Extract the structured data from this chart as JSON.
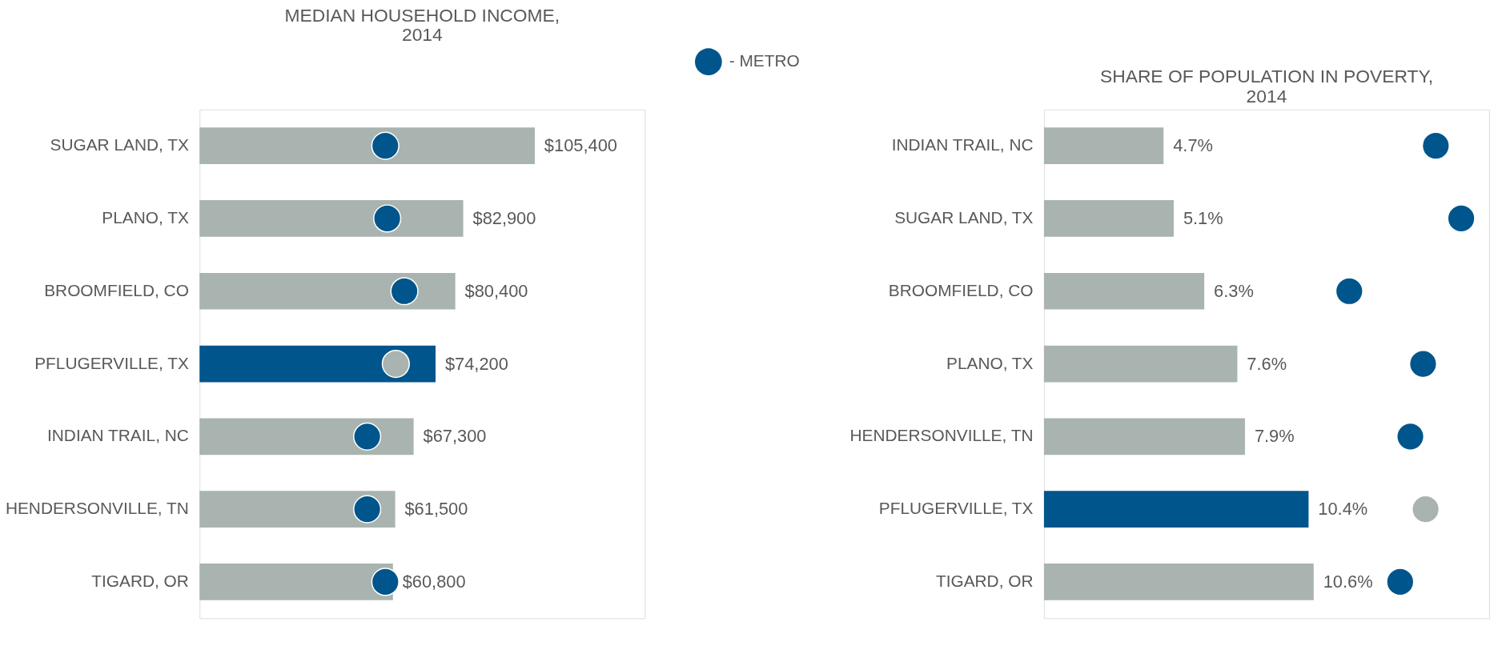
{
  "chart_data": [
    {
      "type": "bar",
      "orientation": "horizontal",
      "title": "MEDIAN HOUSEHOLD INCOME,\n2014",
      "categories": [
        "SUGAR LAND, TX",
        "PLANO, TX",
        "BROOMFIELD, CO",
        "PFLUGERVILLE, TX",
        "INDIAN TRAIL, NC",
        "HENDERSONVILLE, TN",
        "TIGARD, OR"
      ],
      "xlim": [
        0,
        140000
      ],
      "grid": false,
      "legend": "top right",
      "marker": "circle",
      "series": [
        {
          "colors": [
            "#a9b3b0",
            "#a9b3b0",
            "#a9b3b0",
            "#00558c",
            "#a9b3b0",
            "#a9b3b0",
            "#a9b3b0"
          ],
          "values": [
            105400,
            82900,
            80400,
            74200,
            67300,
            61500,
            60800
          ],
          "value_labels": [
            "$105,400",
            "$82,900",
            "$80,400",
            "$74,200",
            "$67,300",
            "$61,500",
            "$60,800"
          ]
        },
        {
          "type": "scatter",
          "name": "- METRO",
          "color": "#00558c",
          "colors": [
            "#00558c",
            "#00558c",
            "#00558c",
            "#a9b3b0",
            "#00558c",
            "#00558c",
            "#00558c"
          ],
          "x": [
            "SUGAR LAND, TX",
            "PLANO, TX",
            "BROOMFIELD, CO",
            "PFLUGERVILLE, TX",
            "INDIAN TRAIL, NC",
            "HENDERSONVILLE, TN",
            "TIGARD, OR"
          ],
          "values": [
            58400,
            59000,
            64400,
            61700,
            52700,
            52700,
            58400
          ]
        }
      ]
    },
    {
      "type": "bar",
      "orientation": "horizontal",
      "title": "SHARE OF POPULATION IN POVERTY,\n2014",
      "categories": [
        "INDIAN TRAIL, NC",
        "SUGAR LAND, TX",
        "BROOMFIELD, CO",
        "PLANO, TX",
        "HENDERSONVILLE, TN",
        "PFLUGERVILLE, TX",
        "TIGARD, OR"
      ],
      "xlim": [
        0,
        17.5
      ],
      "grid": false,
      "marker": "circle",
      "series": [
        {
          "colors": [
            "#a9b3b0",
            "#a9b3b0",
            "#a9b3b0",
            "#a9b3b0",
            "#a9b3b0",
            "#00558c",
            "#a9b3b0"
          ],
          "values": [
            4.7,
            5.1,
            6.3,
            7.6,
            7.9,
            10.4,
            10.6
          ],
          "value_labels": [
            "4.7%",
            "5.1%",
            "6.3%",
            "7.6%",
            "7.9%",
            "10.4%",
            "10.6%"
          ]
        },
        {
          "type": "scatter",
          "color": "#00558c",
          "colors": [
            "#00558c",
            "#00558c",
            "#00558c",
            "#00558c",
            "#00558c",
            "#a9b3b0",
            "#00558c"
          ],
          "x": [
            "INDIAN TRAIL, NC",
            "SUGAR LAND, TX",
            "BROOMFIELD, CO",
            "PLANO, TX",
            "HENDERSONVILLE, TN",
            "PFLUGERVILLE, TX",
            "TIGARD, OR"
          ],
          "values": [
            15.4,
            16.4,
            12.0,
            14.9,
            14.4,
            15.0,
            14.0
          ]
        }
      ]
    }
  ]
}
